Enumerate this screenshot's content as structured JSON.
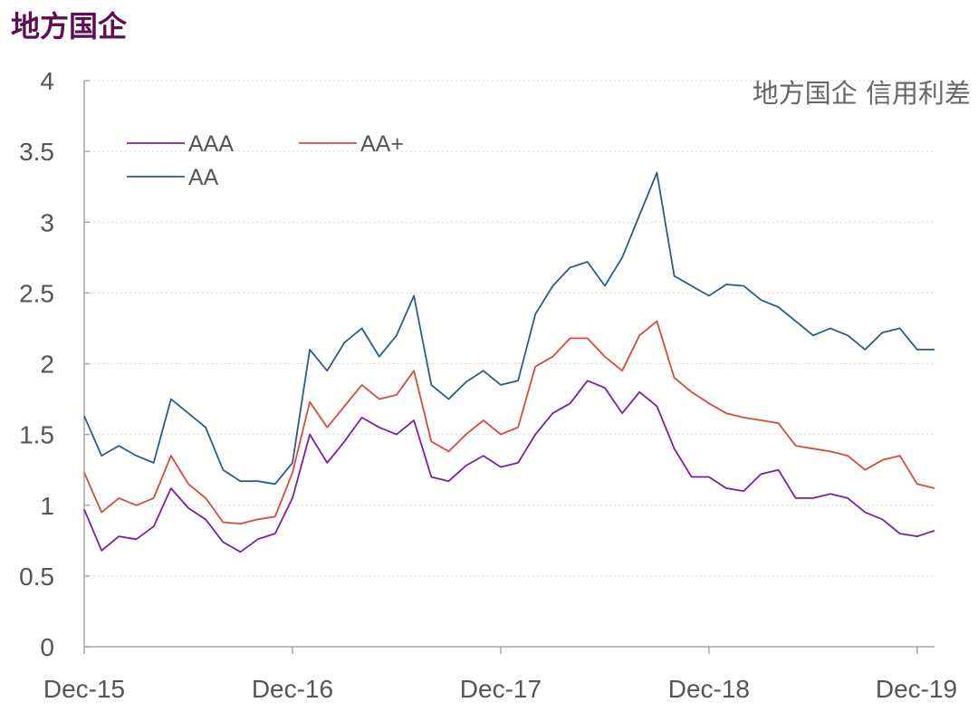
{
  "page_title": "地方国企",
  "chart_data": {
    "type": "line",
    "title": "地方国企",
    "annotation": "地方国企 信用利差",
    "xlabel": "",
    "ylabel": "",
    "x_ticks": [
      "Dec-15",
      "Dec-16",
      "Dec-17",
      "Dec-18",
      "Dec-19"
    ],
    "x_range": [
      "2015-12",
      "2020-01"
    ],
    "ylim": [
      0,
      4
    ],
    "y_ticks": [
      "0",
      "0.5",
      "1",
      "1.5",
      "2",
      "2.5",
      "3",
      "3.5",
      "4"
    ],
    "grid": "horizontal dotted",
    "legend_position": "top-left",
    "x": [
      "2015-12",
      "2016-01",
      "2016-02",
      "2016-03",
      "2016-04",
      "2016-05",
      "2016-06",
      "2016-07",
      "2016-08",
      "2016-09",
      "2016-10",
      "2016-11",
      "2016-12",
      "2017-01",
      "2017-02",
      "2017-03",
      "2017-04",
      "2017-05",
      "2017-06",
      "2017-07",
      "2017-08",
      "2017-09",
      "2017-10",
      "2017-11",
      "2017-12",
      "2018-01",
      "2018-02",
      "2018-03",
      "2018-04",
      "2018-05",
      "2018-06",
      "2018-07",
      "2018-08",
      "2018-09",
      "2018-10",
      "2018-11",
      "2018-12",
      "2019-01",
      "2019-02",
      "2019-03",
      "2019-04",
      "2019-05",
      "2019-06",
      "2019-07",
      "2019-08",
      "2019-09",
      "2019-10",
      "2019-11",
      "2019-12",
      "2020-01"
    ],
    "series": [
      {
        "name": "AAA",
        "color": "#7b1fa2",
        "values": [
          0.97,
          0.68,
          0.78,
          0.76,
          0.85,
          1.12,
          0.98,
          0.9,
          0.74,
          0.67,
          0.76,
          0.8,
          1.05,
          1.5,
          1.3,
          1.45,
          1.62,
          1.55,
          1.5,
          1.6,
          1.2,
          1.17,
          1.28,
          1.35,
          1.27,
          1.3,
          1.5,
          1.65,
          1.72,
          1.88,
          1.83,
          1.65,
          1.8,
          1.7,
          1.4,
          1.2,
          1.2,
          1.12,
          1.1,
          1.22,
          1.25,
          1.05,
          1.05,
          1.08,
          1.05,
          0.95,
          0.9,
          0.8,
          0.78,
          0.82
        ]
      },
      {
        "name": "AA+",
        "color": "#d64b3b",
        "values": [
          1.23,
          0.95,
          1.05,
          1.0,
          1.05,
          1.35,
          1.15,
          1.05,
          0.88,
          0.87,
          0.9,
          0.92,
          1.23,
          1.73,
          1.55,
          1.7,
          1.85,
          1.75,
          1.78,
          1.95,
          1.45,
          1.38,
          1.5,
          1.6,
          1.5,
          1.55,
          1.98,
          2.05,
          2.18,
          2.18,
          2.05,
          1.95,
          2.2,
          2.3,
          1.9,
          1.8,
          1.72,
          1.65,
          1.62,
          1.6,
          1.58,
          1.42,
          1.4,
          1.38,
          1.35,
          1.25,
          1.32,
          1.35,
          1.15,
          1.12
        ]
      },
      {
        "name": "AA",
        "color": "#2e5a87",
        "values": [
          1.63,
          1.35,
          1.42,
          1.35,
          1.3,
          1.75,
          1.65,
          1.55,
          1.25,
          1.17,
          1.17,
          1.15,
          1.3,
          2.1,
          1.95,
          2.15,
          2.25,
          2.05,
          2.2,
          2.48,
          1.85,
          1.75,
          1.87,
          1.95,
          1.85,
          1.88,
          2.35,
          2.55,
          2.68,
          2.72,
          2.55,
          2.75,
          3.05,
          3.35,
          2.62,
          2.55,
          2.48,
          2.56,
          2.55,
          2.45,
          2.4,
          2.3,
          2.2,
          2.25,
          2.2,
          2.1,
          2.22,
          2.25,
          2.1,
          2.1
        ]
      }
    ]
  }
}
